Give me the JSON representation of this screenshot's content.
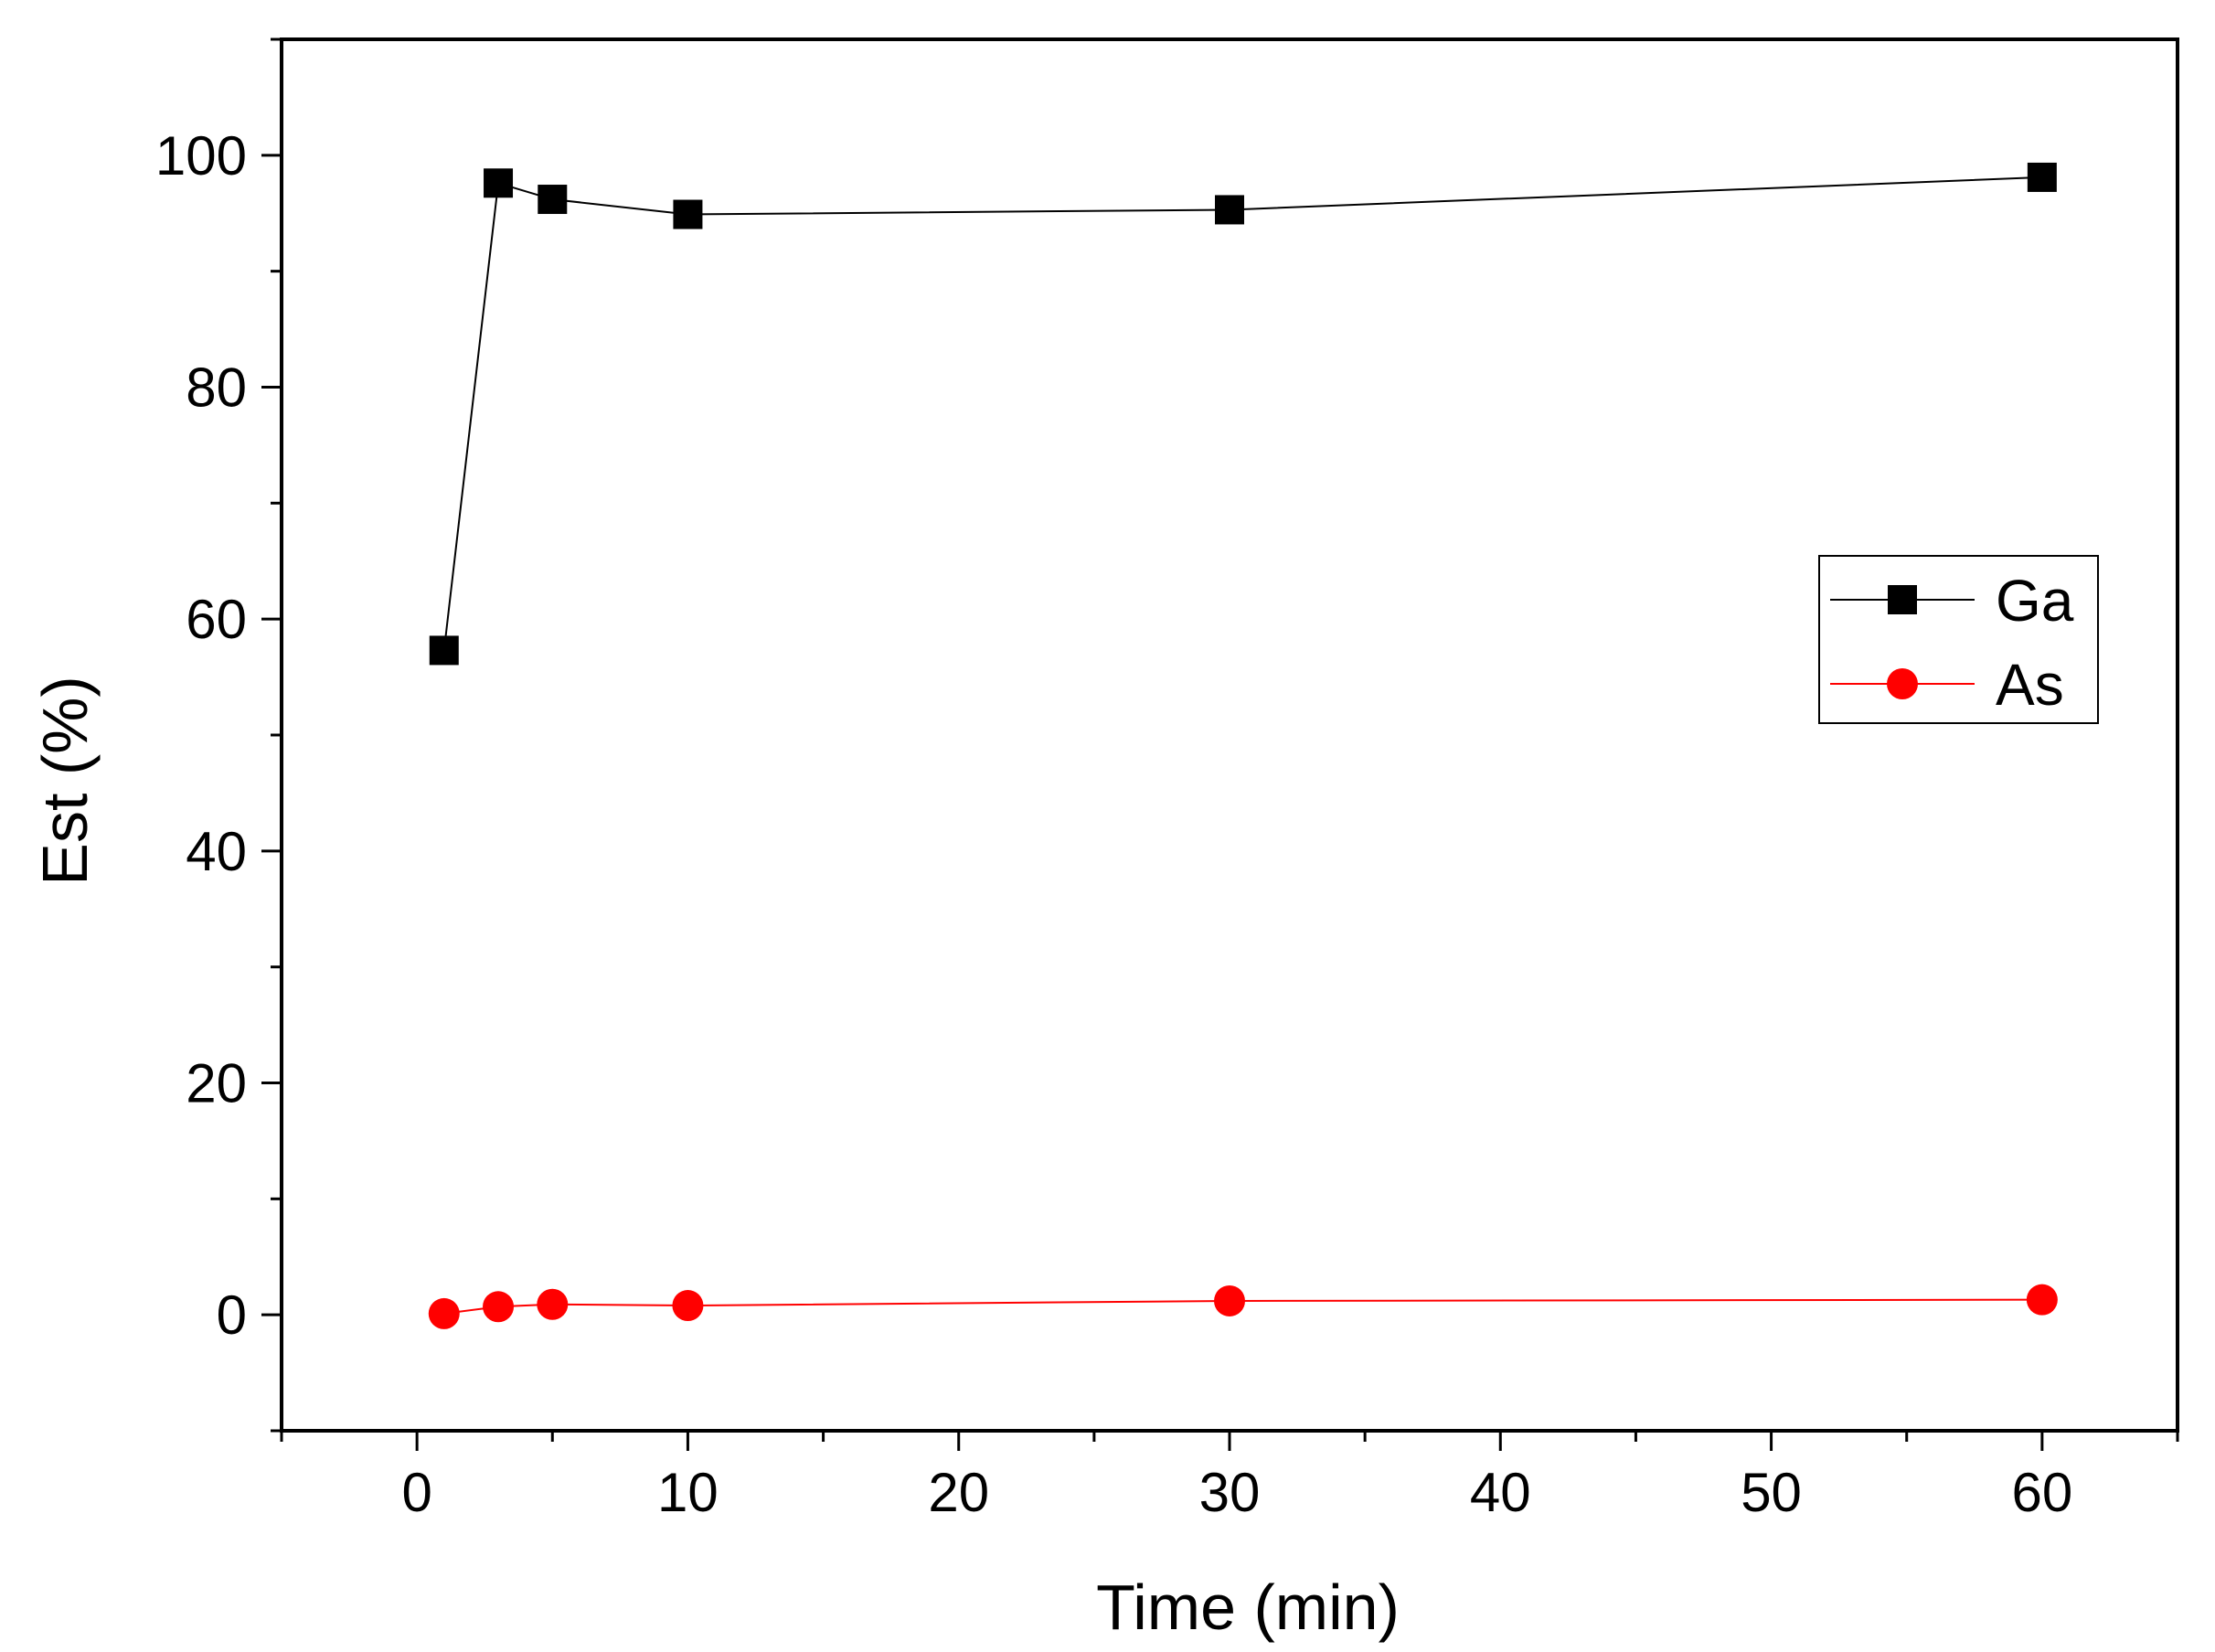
{
  "chart_data": {
    "type": "line",
    "title": "",
    "xlabel": "Time (min)",
    "ylabel": "Est (%)",
    "xlim": [
      -5,
      65
    ],
    "ylim": [
      -10,
      110
    ],
    "xticks": [
      0,
      10,
      20,
      30,
      40,
      50,
      60
    ],
    "xtick_labels": [
      "0",
      "10",
      "20",
      "30",
      "40",
      "50",
      "60"
    ],
    "yticks": [
      0,
      20,
      40,
      60,
      80,
      100
    ],
    "ytick_labels": [
      "0",
      "20",
      "40",
      "60",
      "80",
      "100"
    ],
    "x_minor_step": 5,
    "y_minor_step": 10,
    "grid": false,
    "legend_position": "right",
    "series": [
      {
        "name": "Ga",
        "marker": "square",
        "color": "#000000",
        "line_color": "#000000",
        "x": [
          1,
          3,
          5,
          10,
          30,
          60
        ],
        "values": [
          57.3,
          97.6,
          96.2,
          94.9,
          95.3,
          98.1
        ]
      },
      {
        "name": "As",
        "marker": "circle",
        "color": "#ff0000",
        "line_color": "#ff0000",
        "x": [
          1,
          3,
          5,
          10,
          30,
          60
        ],
        "values": [
          0.1,
          0.7,
          0.9,
          0.8,
          1.2,
          1.3
        ]
      }
    ]
  }
}
